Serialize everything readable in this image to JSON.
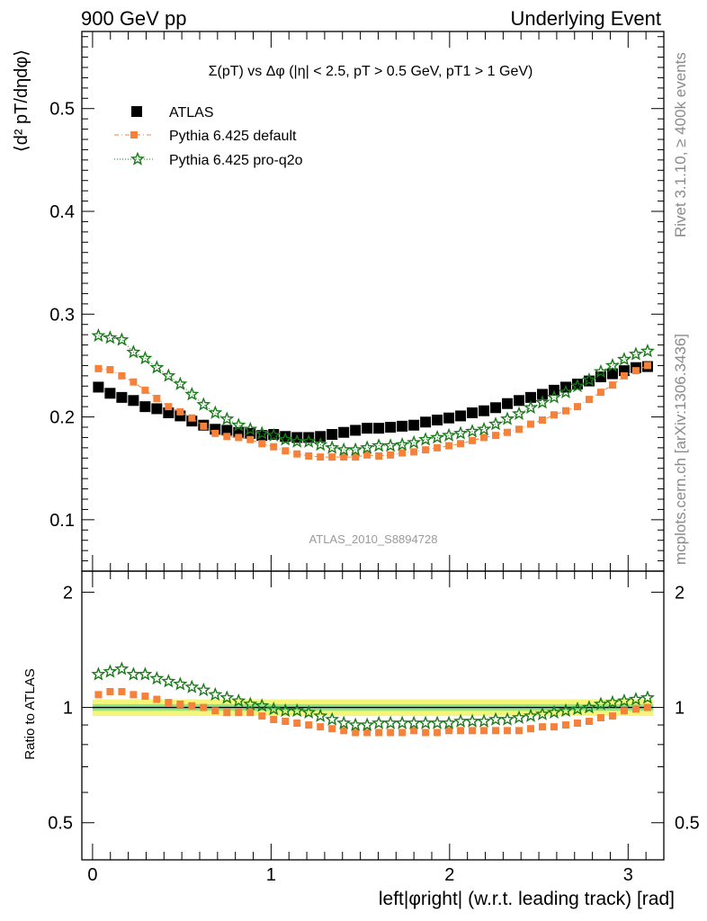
{
  "header": {
    "left": "900 GeV pp",
    "right": "Underlying Event"
  },
  "side": {
    "rivet": "Rivet 3.1.10, ≥ 400k events",
    "mcplots": "mcplots.cern.ch [arXiv:1306.3436]"
  },
  "chart_data": {
    "type": "scatter",
    "title": "Σ(pT) vs Δφ (|η| < 2.5, pT > 0.5 GeV, pT1 > 1 GeV)",
    "analysis_label": "ATLAS_2010_S8894728",
    "xlabel": "left|φright| (w.r.t. leading track) [rad]",
    "ylabel": "⟨d² pT/dηdφ⟩",
    "ratio_ylabel": "Ratio to ATLAS",
    "xlim": [
      -0.06,
      3.2
    ],
    "ylim": [
      0.05,
      0.575
    ],
    "ratio_ylim": [
      0.4,
      2.27
    ],
    "x_ticks": [
      "0",
      "1",
      "2",
      "3"
    ],
    "y_ticks": [
      "0.1",
      "0.2",
      "0.3",
      "0.4",
      "0.5"
    ],
    "ratio_ticks": [
      "0.5",
      "1",
      "2"
    ],
    "legend_position": "top-left",
    "x": [
      0.0327,
      0.0982,
      0.1636,
      0.2291,
      0.2945,
      0.36,
      0.4254,
      0.4909,
      0.5563,
      0.6218,
      0.6872,
      0.7527,
      0.8181,
      0.8836,
      0.949,
      1.0145,
      1.0799,
      1.1454,
      1.2108,
      1.2763,
      1.3417,
      1.4072,
      1.4726,
      1.5381,
      1.6035,
      1.669,
      1.7344,
      1.7999,
      1.8653,
      1.9308,
      1.9962,
      2.0617,
      2.1271,
      2.1926,
      2.258,
      2.3235,
      2.3889,
      2.4544,
      2.5198,
      2.5853,
      2.6507,
      2.7162,
      2.7816,
      2.8471,
      2.9125,
      2.978,
      3.0434,
      3.1089
    ],
    "series": [
      {
        "name": "ATLAS",
        "color": "#000000",
        "marker": "square",
        "values": [
          0.229,
          0.223,
          0.219,
          0.216,
          0.21,
          0.208,
          0.204,
          0.201,
          0.196,
          0.192,
          0.188,
          0.187,
          0.185,
          0.184,
          0.182,
          0.183,
          0.181,
          0.18,
          0.18,
          0.181,
          0.183,
          0.185,
          0.187,
          0.189,
          0.189,
          0.19,
          0.191,
          0.192,
          0.195,
          0.197,
          0.199,
          0.201,
          0.204,
          0.206,
          0.209,
          0.213,
          0.216,
          0.219,
          0.222,
          0.226,
          0.229,
          0.232,
          0.235,
          0.239,
          0.242,
          0.245,
          0.248,
          0.249
        ]
      },
      {
        "name": "Pythia 6.425 default",
        "color": "#f5813a",
        "marker": "square-small",
        "line": "dash-dot",
        "values": [
          0.247,
          0.246,
          0.24,
          0.234,
          0.226,
          0.218,
          0.21,
          0.205,
          0.199,
          0.191,
          0.184,
          0.181,
          0.18,
          0.178,
          0.174,
          0.171,
          0.167,
          0.164,
          0.162,
          0.161,
          0.161,
          0.161,
          0.161,
          0.163,
          0.162,
          0.163,
          0.165,
          0.166,
          0.168,
          0.17,
          0.172,
          0.174,
          0.177,
          0.18,
          0.182,
          0.185,
          0.188,
          0.193,
          0.197,
          0.202,
          0.206,
          0.21,
          0.217,
          0.224,
          0.231,
          0.24,
          0.245,
          0.25
        ]
      },
      {
        "name": "Pythia 6.425 pro-q2o",
        "color": "#1a7a1a",
        "marker": "star",
        "line": "dotted",
        "values": [
          0.279,
          0.277,
          0.275,
          0.263,
          0.257,
          0.248,
          0.24,
          0.232,
          0.222,
          0.212,
          0.204,
          0.198,
          0.192,
          0.188,
          0.184,
          0.182,
          0.178,
          0.176,
          0.176,
          0.173,
          0.17,
          0.168,
          0.168,
          0.17,
          0.172,
          0.172,
          0.173,
          0.175,
          0.178,
          0.18,
          0.182,
          0.184,
          0.186,
          0.188,
          0.193,
          0.198,
          0.203,
          0.209,
          0.214,
          0.219,
          0.224,
          0.23,
          0.236,
          0.244,
          0.25,
          0.256,
          0.261,
          0.264
        ]
      }
    ],
    "ratio_series": [
      {
        "name": "Pythia 6.425 default",
        "color": "#f5813a",
        "marker": "square-small",
        "values": [
          1.08,
          1.1,
          1.1,
          1.08,
          1.07,
          1.05,
          1.03,
          1.02,
          1.01,
          1.0,
          0.98,
          0.97,
          0.97,
          0.97,
          0.95,
          0.93,
          0.92,
          0.91,
          0.9,
          0.89,
          0.88,
          0.87,
          0.86,
          0.86,
          0.86,
          0.86,
          0.86,
          0.87,
          0.86,
          0.86,
          0.87,
          0.87,
          0.87,
          0.87,
          0.87,
          0.87,
          0.87,
          0.88,
          0.89,
          0.89,
          0.9,
          0.91,
          0.92,
          0.94,
          0.95,
          0.98,
          0.99,
          1.0
        ]
      },
      {
        "name": "Pythia 6.425 pro-q2o",
        "color": "#1a7a1a",
        "marker": "star",
        "values": [
          1.22,
          1.24,
          1.26,
          1.22,
          1.22,
          1.19,
          1.17,
          1.15,
          1.13,
          1.11,
          1.08,
          1.06,
          1.04,
          1.02,
          1.01,
          0.99,
          0.98,
          0.98,
          0.97,
          0.95,
          0.93,
          0.91,
          0.9,
          0.9,
          0.91,
          0.91,
          0.91,
          0.91,
          0.91,
          0.91,
          0.91,
          0.92,
          0.92,
          0.92,
          0.93,
          0.93,
          0.94,
          0.95,
          0.96,
          0.97,
          0.98,
          0.99,
          1.0,
          1.02,
          1.03,
          1.04,
          1.05,
          1.06
        ]
      }
    ],
    "ratio_reference": 1.0,
    "ratio_bands": [
      {
        "name": "inner",
        "color": "#8ee68a",
        "range": [
          0.98,
          1.02
        ]
      },
      {
        "name": "outer",
        "color": "#f5f57a",
        "range": [
          0.95,
          1.05
        ]
      }
    ]
  }
}
